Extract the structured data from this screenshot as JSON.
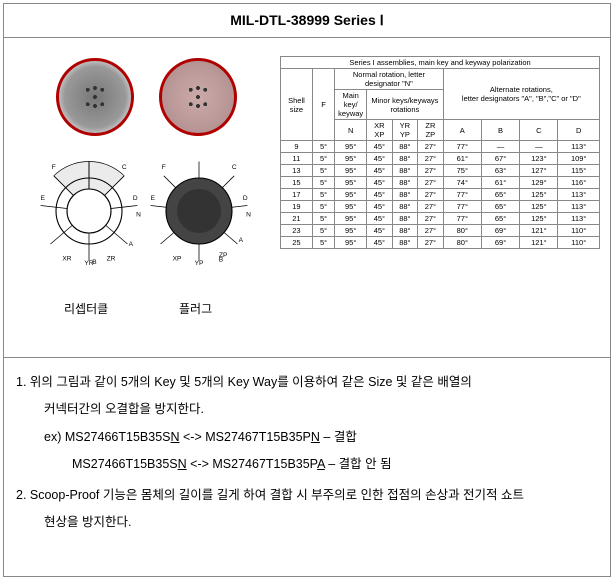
{
  "title": "MIL-DTL-38999  Series  Ⅰ",
  "captions": {
    "receptacle": "리셉터클",
    "plug": "플러그"
  },
  "diagram": {
    "left_labels": [
      "F",
      "E",
      "C",
      "D",
      "N",
      "A",
      "B"
    ],
    "left_bottom": {
      "xr": "XR",
      "yr": "YR",
      "zr": "ZR"
    },
    "right_labels": [
      "C",
      "D",
      "N",
      "A",
      "B",
      "F",
      "E"
    ],
    "right_bottom": {
      "xp": "XP",
      "yp": "YP",
      "zp": "ZP"
    }
  },
  "table": {
    "head_top": "Series I assemblies, main key and keyway polarization",
    "head_normal": "Normal rotation, letter designator \"N\"",
    "head_alt_a": "Alternate rotations,",
    "head_alt_b": "letter designators \"A\", \"B\",\"C\" or \"D\"",
    "shell": "Shell size",
    "F": "F",
    "mainkey": "Main key/ keyway",
    "minor": "Minor keys/keyways rotations",
    "sub": {
      "N": "N",
      "XR": "XR",
      "XP": "XP",
      "YR": "YR",
      "YP": "YP",
      "ZR": "ZR",
      "ZP": "ZP",
      "A": "A",
      "B": "B",
      "C": "C",
      "D": "D"
    },
    "rows": [
      {
        "sz": "9",
        "f": "5°",
        "n": "95°",
        "xr": "45°",
        "yr": "88°",
        "zr": "27°",
        "a": "77°",
        "b": "—",
        "c": "—",
        "d": "113°"
      },
      {
        "sz": "11",
        "f": "5°",
        "n": "95°",
        "xr": "45°",
        "yr": "88°",
        "zr": "27°",
        "a": "61°",
        "b": "67°",
        "c": "123°",
        "d": "109°"
      },
      {
        "sz": "13",
        "f": "5°",
        "n": "95°",
        "xr": "45°",
        "yr": "88°",
        "zr": "27°",
        "a": "75°",
        "b": "63°",
        "c": "127°",
        "d": "115°"
      },
      {
        "sz": "15",
        "f": "5°",
        "n": "95°",
        "xr": "45°",
        "yr": "88°",
        "zr": "27°",
        "a": "74°",
        "b": "61°",
        "c": "129°",
        "d": "116°"
      },
      {
        "sz": "17",
        "f": "5°",
        "n": "95°",
        "xr": "45°",
        "yr": "88°",
        "zr": "27°",
        "a": "77°",
        "b": "65°",
        "c": "125°",
        "d": "113°"
      },
      {
        "sz": "19",
        "f": "5°",
        "n": "95°",
        "xr": "45°",
        "yr": "88°",
        "zr": "27°",
        "a": "77°",
        "b": "65°",
        "c": "125°",
        "d": "113°"
      },
      {
        "sz": "21",
        "f": "5°",
        "n": "95°",
        "xr": "45°",
        "yr": "88°",
        "zr": "27°",
        "a": "77°",
        "b": "65°",
        "c": "125°",
        "d": "113°"
      },
      {
        "sz": "23",
        "f": "5°",
        "n": "95°",
        "xr": "45°",
        "yr": "88°",
        "zr": "27°",
        "a": "80°",
        "b": "69°",
        "c": "121°",
        "d": "110°"
      },
      {
        "sz": "25",
        "f": "5°",
        "n": "95°",
        "xr": "45°",
        "yr": "88°",
        "zr": "27°",
        "a": "80°",
        "b": "69°",
        "c": "121°",
        "d": "110°"
      }
    ]
  },
  "body": {
    "p1a": "1. 위의 그림과 같이 5개의 Key 및 5개의 Key Way를 이용하여 같은 Size 및 같은 배열의",
    "p1b": "커넥터간의 오결합을 방지한다.",
    "ex_label": "ex)",
    "ex1_a": "MS27466T15B35S",
    "ex1_aU": "N",
    "ex1_arrow": " <-> ",
    "ex1_b": "MS27467T15B35P",
    "ex1_bU": "N",
    "ex1_res": " – 결합",
    "ex2_a": "MS27466T15B35S",
    "ex2_aU": "N",
    "ex2_arrow": " <-> ",
    "ex2_b": "MS27467T15B35P",
    "ex2_bU": "A",
    "ex2_res": " – 결합 안 됨",
    "p2a": "2. Scoop-Proof 기능은 몸체의 길이를 길게 하여 결합 시 부주의로 인한 접점의 손상과 전기적 쇼트",
    "p2b": "현상을 방지한다."
  },
  "colors": {
    "accent": "#b00000",
    "border": "#888888",
    "text": "#000000",
    "bg": "#ffffff"
  }
}
